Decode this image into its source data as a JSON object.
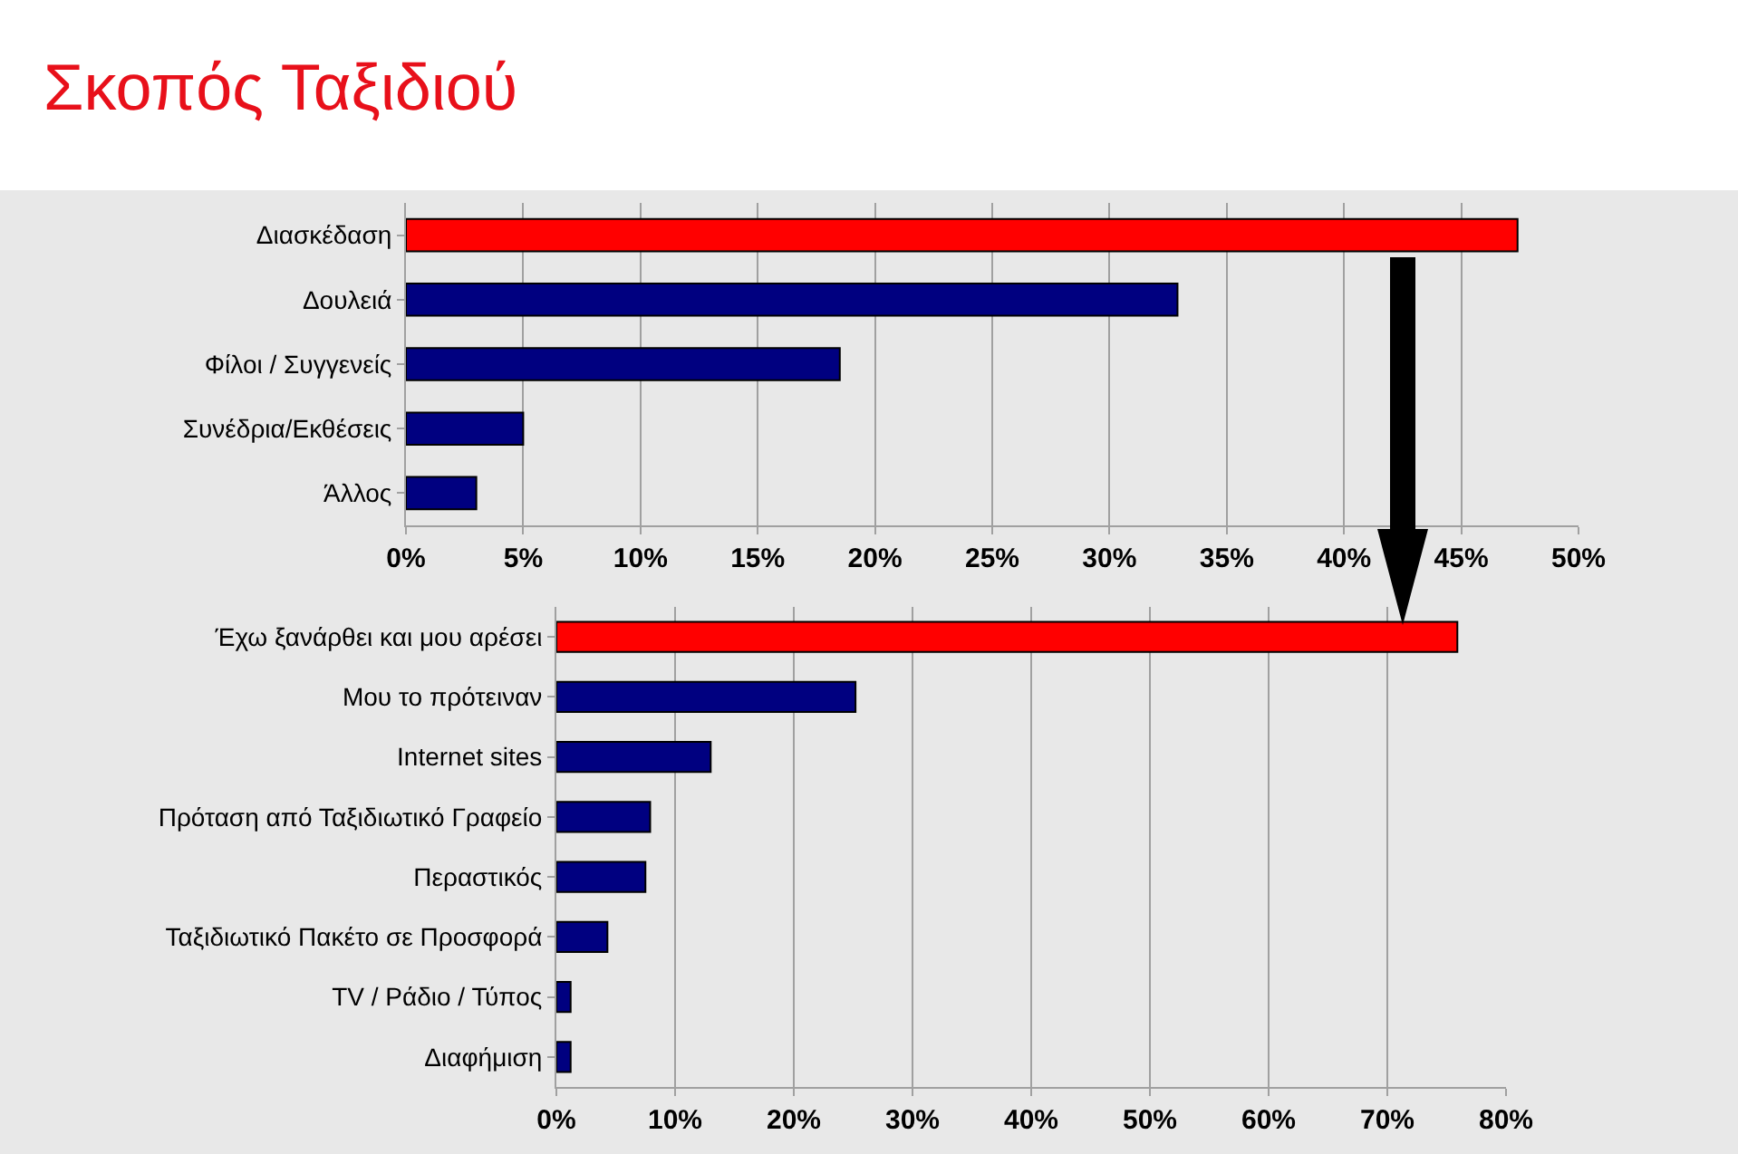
{
  "chart_data": [
    {
      "type": "bar",
      "orientation": "horizontal",
      "title": "Σκοπός Ταξιδιού",
      "categories": [
        "Διασκέδαση",
        "Δουλειά",
        "Φίλοι / Συγγενείς",
        "Συνέδρια/Εκθέσεις",
        "Άλλος"
      ],
      "values": [
        47.4,
        32.9,
        18.5,
        5.0,
        3.0
      ],
      "colors": [
        "#ff0000",
        "#000080",
        "#000080",
        "#000080",
        "#000080"
      ],
      "xlim": [
        0,
        50
      ],
      "xticks": [
        {
          "value": 0,
          "label": "0%"
        },
        {
          "value": 5,
          "label": "5%"
        },
        {
          "value": 10,
          "label": "10%"
        },
        {
          "value": 15,
          "label": "15%"
        },
        {
          "value": 20,
          "label": "20%"
        },
        {
          "value": 25,
          "label": "25%"
        },
        {
          "value": 30,
          "label": "30%"
        },
        {
          "value": 35,
          "label": "35%"
        },
        {
          "value": 40,
          "label": "40%"
        },
        {
          "value": 45,
          "label": "45%"
        },
        {
          "value": 50,
          "label": "50%"
        }
      ],
      "grid": "x"
    },
    {
      "type": "bar",
      "orientation": "horizontal",
      "categories": [
        "Έχω ξανάρθει και μου αρέσει",
        "Μου το πρότειναν",
        "Internet sites",
        "Πρόταση από Ταξιδιωτικό Γραφείο",
        "Περαστικός",
        "Ταξιδιωτικό Πακέτο σε Προσφορά",
        "TV / Ράδιο / Τύπος",
        "Διαφήμιση"
      ],
      "values": [
        75.9,
        25.2,
        13.0,
        7.9,
        7.5,
        4.3,
        1.2,
        1.2
      ],
      "colors": [
        "#ff0000",
        "#000080",
        "#000080",
        "#000080",
        "#000080",
        "#000080",
        "#000080",
        "#000080"
      ],
      "xlim": [
        0,
        80
      ],
      "xticks": [
        {
          "value": 0,
          "label": "0%"
        },
        {
          "value": 10,
          "label": "10%"
        },
        {
          "value": 20,
          "label": "20%"
        },
        {
          "value": 30,
          "label": "30%"
        },
        {
          "value": 40,
          "label": "40%"
        },
        {
          "value": 50,
          "label": "50%"
        },
        {
          "value": 60,
          "label": "60%"
        },
        {
          "value": 70,
          "label": "70%"
        },
        {
          "value": 80,
          "label": "80%"
        }
      ],
      "grid": "x"
    }
  ]
}
